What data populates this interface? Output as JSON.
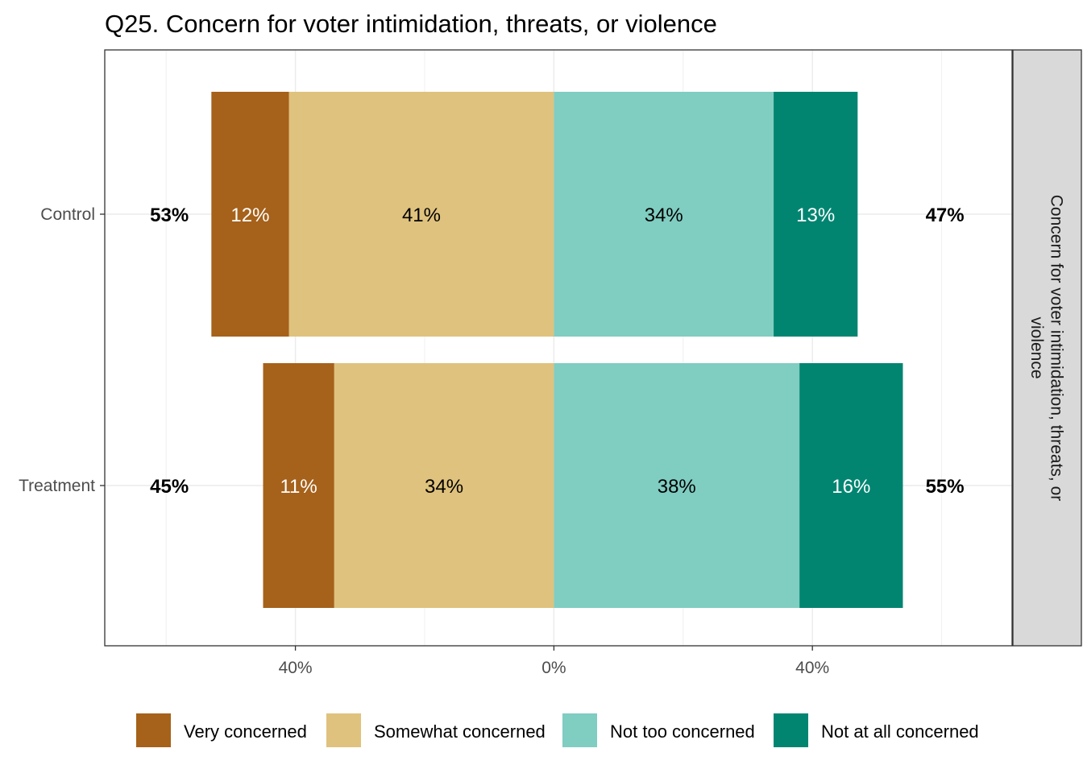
{
  "chart_data": {
    "type": "bar",
    "orientation": "horizontal-diverging-stacked",
    "title": "Q25. Concern for voter intimidation, threats, or violence",
    "facet_label": "Concern for voter intimidation, threats, or violence",
    "categories": [
      "Control",
      "Treatment"
    ],
    "series": [
      {
        "name": "Very concerned",
        "side": "negative",
        "color": "#A6611A",
        "label_color": "#ffffff",
        "values": [
          12,
          11
        ],
        "labels": [
          "12%",
          "11%"
        ]
      },
      {
        "name": "Somewhat concerned",
        "side": "negative",
        "color": "#DFC27D",
        "label_color": "#000000",
        "values": [
          41,
          34
        ],
        "labels": [
          "41%",
          "34%"
        ]
      },
      {
        "name": "Not too concerned",
        "side": "positive",
        "color": "#80CDC1",
        "label_color": "#000000",
        "values": [
          34,
          38
        ],
        "labels": [
          "34%",
          "38%"
        ]
      },
      {
        "name": "Not at all concerned",
        "side": "positive",
        "color": "#018571",
        "label_color": "#ffffff",
        "values": [
          13,
          16
        ],
        "labels": [
          "13%",
          "16%"
        ]
      }
    ],
    "left_totals": [
      "53%",
      "45%"
    ],
    "right_totals": [
      "47%",
      "55%"
    ],
    "x_ticks": [
      {
        "value": -40,
        "label": "40%"
      },
      {
        "value": 0,
        "label": "0%"
      },
      {
        "value": 40,
        "label": "40%"
      }
    ],
    "xlim": [
      -69.5,
      70.9
    ],
    "grid": true,
    "legend_position": "bottom"
  }
}
